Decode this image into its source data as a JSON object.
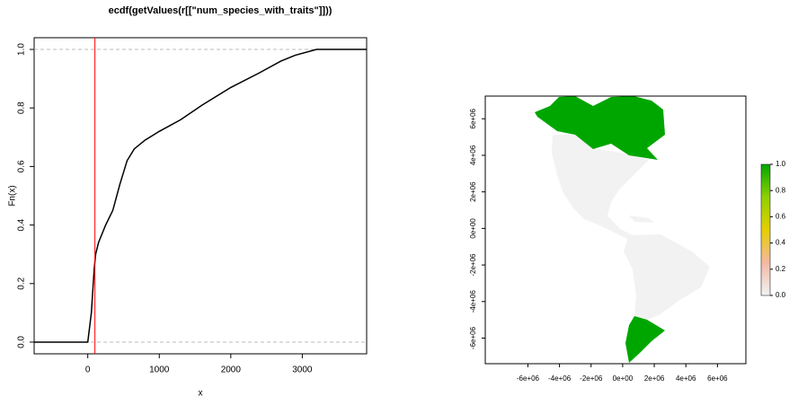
{
  "chart_data": [
    {
      "type": "line",
      "title": "ecdf(getValues(r[[\"num_species_with_traits\"]]))",
      "x_label": "x",
      "y_label": "Fn(x)",
      "x": [
        -750,
        0,
        50,
        90,
        110,
        150,
        250,
        350,
        450,
        550,
        650,
        800,
        1000,
        1300,
        1600,
        2000,
        2400,
        2700,
        2900,
        3200,
        3900
      ],
      "values": [
        0,
        0,
        0.1,
        0.25,
        0.3,
        0.34,
        0.4,
        0.45,
        0.54,
        0.62,
        0.66,
        0.69,
        0.72,
        0.76,
        0.81,
        0.87,
        0.92,
        0.96,
        0.98,
        1.0,
        1.0
      ],
      "color": "#000000",
      "xlim": [
        -750,
        3900
      ],
      "ylim": [
        -0.04,
        1.04
      ],
      "xticks": [
        0,
        1000,
        2000,
        3000
      ],
      "yticks": [
        {
          "value": 0,
          "label": "0.0"
        },
        0.2,
        0.4,
        0.6,
        0.8,
        {
          "value": 1,
          "label": "1.0"
        }
      ],
      "vline": 100,
      "vline_color": "#ff0000",
      "hlines": [
        0,
        1
      ],
      "hline_color": "#bbbbbb"
    },
    {
      "type": "map",
      "xlim": [
        -8700000,
        7800000
      ],
      "ylim": [
        -7400000,
        7240000
      ],
      "xticks": [
        {
          "value": -6000000,
          "label": "-6e+06"
        },
        {
          "value": -4000000,
          "label": "-4e+06"
        },
        {
          "value": -2000000,
          "label": "-2e+06"
        },
        {
          "value": 0,
          "label": "0e+00"
        },
        {
          "value": 2000000,
          "label": "2e+06"
        },
        {
          "value": 4000000,
          "label": "4e+06"
        },
        {
          "value": 6000000,
          "label": "6e+06"
        }
      ],
      "yticks": [
        {
          "value": -6000000,
          "label": "-6e+06"
        },
        {
          "value": -4000000,
          "label": "-4e+06"
        },
        {
          "value": -2000000,
          "label": "-2e+06"
        },
        {
          "value": 0,
          "label": "0e+00"
        },
        {
          "value": 2000000,
          "label": "2e+06"
        },
        {
          "value": 4000000,
          "label": "4e+06"
        },
        {
          "value": 6000000,
          "label": "6e+06"
        }
      ],
      "zlim": [
        0,
        1
      ],
      "zticks": [
        {
          "value": 0,
          "label": "0.0"
        },
        0.2,
        0.4,
        0.6,
        0.8,
        {
          "value": 1,
          "label": "1.0"
        }
      ],
      "colors": [
        "#f2f2f2",
        "#f2b9a2",
        "#e6cf00",
        "#8ed100",
        "#00a600"
      ]
    }
  ]
}
